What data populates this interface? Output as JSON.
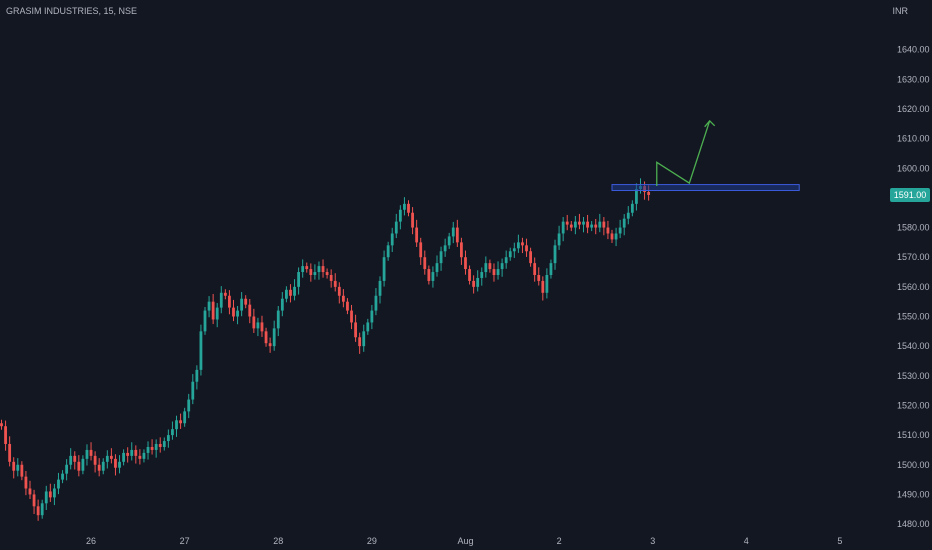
{
  "header": {
    "title": "GRASIM INDUSTRIES, 15, NSE",
    "currency": "INR"
  },
  "colors": {
    "up": "#26a69a",
    "down": "#ef5350",
    "background": "#131722",
    "axis_text": "#b2b5be",
    "zone_fill": "#1e3a8a",
    "zone_stroke": "#3b5bdb",
    "arrow": "#4caf50",
    "badge": "#26a69a"
  },
  "chart_data": {
    "type": "candlestick",
    "title": "GRASIM INDUSTRIES, 15, NSE",
    "ylabel": "INR",
    "ylim": [
      1478,
      1650
    ],
    "yticks": [
      1480,
      1490,
      1500,
      1510,
      1520,
      1530,
      1540,
      1550,
      1560,
      1570,
      1580,
      1590,
      1600,
      1610,
      1620,
      1630,
      1640
    ],
    "ytick_labels": [
      "1480.00",
      "1490.00",
      "1500.00",
      "1510.00",
      "1520.00",
      "1530.00",
      "1540.00",
      "1550.00",
      "1560.00",
      "1570.00",
      "1580.00",
      "1590.00",
      "1600.00",
      "1610.00",
      "1620.00",
      "1630.00",
      "1640.00"
    ],
    "xticks": [
      {
        "label": "26",
        "bar": 22
      },
      {
        "label": "27",
        "bar": 45
      },
      {
        "label": "28",
        "bar": 68
      },
      {
        "label": "29",
        "bar": 91
      },
      {
        "label": "Aug",
        "bar": 114
      },
      {
        "label": "2",
        "bar": 137
      },
      {
        "label": "3",
        "bar": 160
      },
      {
        "label": "4",
        "bar": 183
      },
      {
        "label": "5",
        "bar": 206
      }
    ],
    "last_price": 1591.0,
    "last_price_label": "1591.00",
    "closes": [
      1513,
      1507,
      1501,
      1498,
      1500,
      1496,
      1492,
      1490,
      1486,
      1483,
      1487,
      1491,
      1489,
      1492,
      1495,
      1497,
      1500,
      1503,
      1501,
      1498,
      1502,
      1505,
      1503,
      1500,
      1498,
      1501,
      1503,
      1502,
      1499,
      1501,
      1504,
      1503,
      1505,
      1503,
      1502,
      1504,
      1506,
      1505,
      1507,
      1506,
      1508,
      1510,
      1512,
      1515,
      1514,
      1518,
      1522,
      1528,
      1532,
      1545,
      1552,
      1555,
      1549,
      1553,
      1558,
      1557,
      1553,
      1550,
      1552,
      1556,
      1554,
      1550,
      1546,
      1548,
      1545,
      1541,
      1540,
      1546,
      1552,
      1556,
      1559,
      1557,
      1560,
      1565,
      1567,
      1566,
      1564,
      1565,
      1567,
      1565,
      1564,
      1562,
      1560,
      1557,
      1555,
      1552,
      1548,
      1543,
      1540,
      1545,
      1548,
      1552,
      1557,
      1562,
      1570,
      1574,
      1578,
      1582,
      1586,
      1588,
      1585,
      1580,
      1575,
      1570,
      1566,
      1562,
      1565,
      1568,
      1572,
      1574,
      1577,
      1580,
      1575,
      1570,
      1566,
      1562,
      1560,
      1563,
      1565,
      1568,
      1566,
      1564,
      1566,
      1568,
      1570,
      1572,
      1573,
      1575,
      1574,
      1572,
      1568,
      1564,
      1562,
      1558,
      1564,
      1568,
      1574,
      1578,
      1582,
      1581,
      1580,
      1582,
      1581,
      1582,
      1580,
      1581,
      1580,
      1582,
      1580,
      1578,
      1576,
      1578,
      1580,
      1583,
      1585,
      1588,
      1593,
      1594,
      1592,
      1591
    ],
    "zone": {
      "from_bar": 150,
      "to_bar": 196,
      "low": 1592.5,
      "high": 1594.5
    },
    "arrow_path": [
      {
        "bar": 161,
        "price": 1594
      },
      {
        "bar": 161,
        "price": 1602
      },
      {
        "bar": 169,
        "price": 1595
      },
      {
        "bar": 174,
        "price": 1616
      }
    ]
  }
}
